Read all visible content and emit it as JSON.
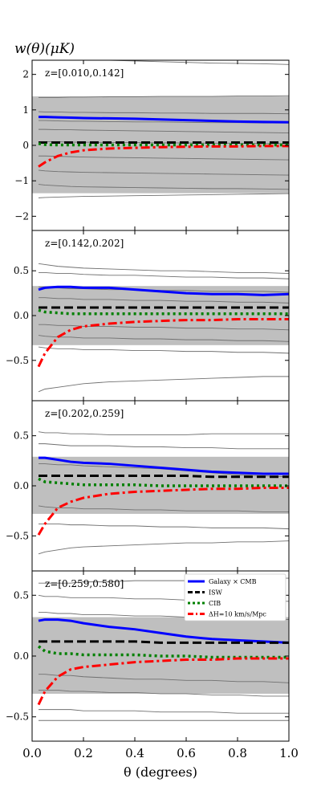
{
  "figure": {
    "ylabel": "w(θ)(μK)",
    "xlabel": "θ (degrees)",
    "x_ticks": [
      "0.0",
      "0.2",
      "0.4",
      "0.6",
      "0.8",
      "1.0"
    ]
  },
  "legend": {
    "placement": "upper-right of bottom panel",
    "entries": [
      {
        "label": "Galaxy × CMB",
        "color": "#0000ff",
        "style": "solid"
      },
      {
        "label": "ISW",
        "color": "#000000",
        "style": "dashed"
      },
      {
        "label": "CIB",
        "color": "#008000",
        "style": "dotted"
      },
      {
        "label": "ΔH=10 km/s/Mpc",
        "color": "#ff0000",
        "style": "dashdot"
      }
    ]
  },
  "colors": {
    "galaxy_cmb": "#0000ff",
    "isw": "#000000",
    "cib": "#008000",
    "delta_h": "#ff0000",
    "band": "#bfbfbf",
    "sims": "#707070"
  },
  "chart_data": [
    {
      "type": "line",
      "panel_label": "z=[0.010,0.142]",
      "xlim": [
        0.0,
        1.0
      ],
      "ylim": [
        -2.4,
        2.4
      ],
      "yticks": [
        -2,
        -1,
        0,
        1,
        2
      ],
      "ytick_labels": [
        "−2",
        "−1",
        "0",
        "1",
        "2"
      ],
      "band": [
        -1.35,
        1.38
      ],
      "x": [
        0.025,
        0.05,
        0.1,
        0.15,
        0.2,
        0.3,
        0.4,
        0.5,
        0.6,
        0.7,
        0.8,
        0.9,
        1.0
      ],
      "series": [
        {
          "key": "galaxy_cmb",
          "values": [
            0.8,
            0.8,
            0.79,
            0.78,
            0.77,
            0.76,
            0.75,
            0.73,
            0.71,
            0.69,
            0.67,
            0.66,
            0.65
          ]
        },
        {
          "key": "isw",
          "values": [
            0.08,
            0.08,
            0.08,
            0.08,
            0.08,
            0.08,
            0.08,
            0.08,
            0.08,
            0.08,
            0.08,
            0.08,
            0.08
          ]
        },
        {
          "key": "cib",
          "values": [
            0.05,
            0.02,
            0.01,
            0.01,
            0.01,
            0.01,
            0.01,
            0.01,
            0.01,
            0.01,
            0.01,
            0.01,
            0.01
          ]
        },
        {
          "key": "delta_h",
          "values": [
            -0.6,
            -0.48,
            -0.3,
            -0.2,
            -0.14,
            -0.09,
            -0.07,
            -0.05,
            -0.04,
            -0.03,
            -0.03,
            -0.02,
            -0.02
          ]
        }
      ],
      "sims": [
        [
          2.55,
          2.5,
          2.46,
          2.44,
          2.42,
          2.4,
          2.38,
          2.36,
          2.34,
          2.32,
          2.31,
          2.3,
          2.28
        ],
        [
          1.35,
          1.35,
          1.35,
          1.36,
          1.36,
          1.37,
          1.37,
          1.38,
          1.38,
          1.38,
          1.39,
          1.39,
          1.4
        ],
        [
          0.95,
          0.94,
          0.94,
          0.93,
          0.93,
          0.92,
          0.92,
          0.91,
          0.91,
          0.9,
          0.9,
          0.9,
          0.89
        ],
        [
          0.7,
          0.7,
          0.69,
          0.68,
          0.68,
          0.67,
          0.66,
          0.66,
          0.65,
          0.64,
          0.64,
          0.63,
          0.63
        ],
        [
          0.45,
          0.45,
          0.44,
          0.44,
          0.43,
          0.42,
          0.41,
          0.4,
          0.39,
          0.38,
          0.37,
          0.36,
          0.35
        ],
        [
          0.1,
          0.1,
          0.1,
          0.09,
          0.09,
          0.08,
          0.08,
          0.07,
          0.07,
          0.06,
          0.06,
          0.05,
          0.05
        ],
        [
          -0.3,
          -0.3,
          -0.31,
          -0.32,
          -0.33,
          -0.34,
          -0.35,
          -0.36,
          -0.37,
          -0.38,
          -0.39,
          -0.4,
          -0.41
        ],
        [
          -0.7,
          -0.72,
          -0.74,
          -0.75,
          -0.76,
          -0.77,
          -0.78,
          -0.79,
          -0.8,
          -0.81,
          -0.82,
          -0.83,
          -0.84
        ],
        [
          -1.1,
          -1.12,
          -1.14,
          -1.16,
          -1.17,
          -1.18,
          -1.19,
          -1.2,
          -1.21,
          -1.22,
          -1.22,
          -1.23,
          -1.24
        ],
        [
          -1.48,
          -1.47,
          -1.46,
          -1.45,
          -1.44,
          -1.43,
          -1.42,
          -1.41,
          -1.4,
          -1.39,
          -1.38,
          -1.37,
          -1.36
        ]
      ]
    },
    {
      "type": "line",
      "panel_label": "z=[0.142,0.202]",
      "xlim": [
        0.0,
        1.0
      ],
      "ylim": [
        -0.95,
        0.95
      ],
      "yticks": [
        -0.5,
        0.0,
        0.5
      ],
      "ytick_labels": [
        "−0.5",
        "0.0",
        "0.5"
      ],
      "band": [
        -0.33,
        0.33
      ],
      "x": [
        0.025,
        0.05,
        0.1,
        0.15,
        0.2,
        0.3,
        0.4,
        0.5,
        0.6,
        0.7,
        0.8,
        0.9,
        1.0
      ],
      "series": [
        {
          "key": "galaxy_cmb",
          "values": [
            0.29,
            0.31,
            0.32,
            0.32,
            0.31,
            0.31,
            0.29,
            0.27,
            0.25,
            0.24,
            0.24,
            0.23,
            0.24
          ]
        },
        {
          "key": "isw",
          "values": [
            0.09,
            0.09,
            0.09,
            0.09,
            0.09,
            0.09,
            0.09,
            0.09,
            0.09,
            0.09,
            0.09,
            0.09,
            0.09
          ]
        },
        {
          "key": "cib",
          "values": [
            0.06,
            0.04,
            0.03,
            0.02,
            0.02,
            0.02,
            0.02,
            0.02,
            0.02,
            0.02,
            0.02,
            0.02,
            0.02
          ]
        },
        {
          "key": "delta_h",
          "values": [
            -0.57,
            -0.42,
            -0.24,
            -0.16,
            -0.12,
            -0.09,
            -0.07,
            -0.06,
            -0.05,
            -0.05,
            -0.04,
            -0.04,
            -0.04
          ]
        }
      ],
      "sims": [
        [
          0.58,
          0.57,
          0.55,
          0.54,
          0.53,
          0.52,
          0.51,
          0.5,
          0.5,
          0.49,
          0.48,
          0.48,
          0.47
        ],
        [
          0.48,
          0.48,
          0.47,
          0.47,
          0.46,
          0.45,
          0.45,
          0.44,
          0.43,
          0.43,
          0.42,
          0.42,
          0.41
        ],
        [
          0.32,
          0.32,
          0.31,
          0.3,
          0.3,
          0.29,
          0.29,
          0.28,
          0.28,
          0.27,
          0.27,
          0.27,
          0.26
        ],
        [
          0.2,
          0.2,
          0.19,
          0.19,
          0.18,
          0.18,
          0.17,
          0.17,
          0.16,
          0.16,
          0.15,
          0.15,
          0.14
        ],
        [
          -0.1,
          -0.1,
          -0.11,
          -0.11,
          -0.12,
          -0.12,
          -0.13,
          -0.13,
          -0.14,
          -0.14,
          -0.15,
          -0.15,
          -0.16
        ],
        [
          -0.22,
          -0.23,
          -0.24,
          -0.24,
          -0.25,
          -0.25,
          -0.26,
          -0.26,
          -0.27,
          -0.27,
          -0.28,
          -0.28,
          -0.29
        ],
        [
          -0.35,
          -0.36,
          -0.37,
          -0.37,
          -0.38,
          -0.38,
          -0.39,
          -0.39,
          -0.4,
          -0.4,
          -0.41,
          -0.41,
          -0.42
        ],
        [
          -0.85,
          -0.82,
          -0.8,
          -0.78,
          -0.76,
          -0.74,
          -0.73,
          -0.72,
          -0.71,
          -0.7,
          -0.69,
          -0.68,
          -0.68
        ]
      ]
    },
    {
      "type": "line",
      "panel_label": "z=[0.202,0.259]",
      "xlim": [
        0.0,
        1.0
      ],
      "ylim": [
        -0.85,
        0.85
      ],
      "yticks": [
        -0.5,
        0.0,
        0.5
      ],
      "ytick_labels": [
        "−0.5",
        "0.0",
        "0.5"
      ],
      "band": [
        -0.28,
        0.29
      ],
      "x": [
        0.025,
        0.05,
        0.1,
        0.15,
        0.2,
        0.3,
        0.4,
        0.5,
        0.6,
        0.7,
        0.8,
        0.9,
        1.0
      ],
      "series": [
        {
          "key": "galaxy_cmb",
          "values": [
            0.28,
            0.28,
            0.26,
            0.24,
            0.23,
            0.22,
            0.2,
            0.18,
            0.16,
            0.14,
            0.13,
            0.12,
            0.12
          ]
        },
        {
          "key": "isw",
          "values": [
            0.1,
            0.1,
            0.1,
            0.1,
            0.1,
            0.1,
            0.1,
            0.1,
            0.1,
            0.09,
            0.09,
            0.09,
            0.09
          ]
        },
        {
          "key": "cib",
          "values": [
            0.07,
            0.04,
            0.03,
            0.02,
            0.01,
            0.01,
            0.01,
            0.0,
            0.0,
            0.0,
            0.0,
            0.0,
            0.0
          ]
        },
        {
          "key": "delta_h",
          "values": [
            -0.49,
            -0.38,
            -0.22,
            -0.16,
            -0.12,
            -0.08,
            -0.06,
            -0.05,
            -0.04,
            -0.03,
            -0.03,
            -0.02,
            -0.02
          ]
        }
      ],
      "sims": [
        [
          0.54,
          0.53,
          0.53,
          0.52,
          0.52,
          0.51,
          0.51,
          0.51,
          0.51,
          0.52,
          0.52,
          0.52,
          0.52
        ],
        [
          0.42,
          0.42,
          0.41,
          0.4,
          0.4,
          0.4,
          0.39,
          0.39,
          0.38,
          0.38,
          0.37,
          0.37,
          0.37
        ],
        [
          0.22,
          0.22,
          0.21,
          0.21,
          0.2,
          0.19,
          0.18,
          0.17,
          0.15,
          0.13,
          0.11,
          0.1,
          0.09
        ],
        [
          -0.2,
          -0.21,
          -0.22,
          -0.22,
          -0.23,
          -0.23,
          -0.24,
          -0.24,
          -0.25,
          -0.25,
          -0.25,
          -0.26,
          -0.26
        ],
        [
          -0.38,
          -0.38,
          -0.38,
          -0.39,
          -0.39,
          -0.4,
          -0.4,
          -0.41,
          -0.41,
          -0.42,
          -0.42,
          -0.42,
          -0.43
        ],
        [
          -0.68,
          -0.66,
          -0.64,
          -0.62,
          -0.61,
          -0.6,
          -0.59,
          -0.58,
          -0.57,
          -0.57,
          -0.56,
          -0.56,
          -0.55
        ]
      ]
    },
    {
      "type": "line",
      "panel_label": "z=[0.259,0.580]",
      "xlim": [
        0.0,
        1.0
      ],
      "ylim": [
        -0.7,
        0.7
      ],
      "yticks": [
        -0.5,
        0.0,
        0.5
      ],
      "ytick_labels": [
        "−0.5",
        "0.0",
        "0.5"
      ],
      "band": [
        -0.31,
        0.32
      ],
      "x": [
        0.025,
        0.05,
        0.1,
        0.15,
        0.2,
        0.3,
        0.4,
        0.5,
        0.6,
        0.7,
        0.8,
        0.9,
        1.0
      ],
      "series": [
        {
          "key": "galaxy_cmb",
          "values": [
            0.29,
            0.3,
            0.3,
            0.29,
            0.27,
            0.24,
            0.22,
            0.19,
            0.16,
            0.14,
            0.13,
            0.12,
            0.11
          ]
        },
        {
          "key": "isw",
          "values": [
            0.12,
            0.12,
            0.12,
            0.12,
            0.12,
            0.12,
            0.12,
            0.11,
            0.11,
            0.11,
            0.11,
            0.11,
            0.11
          ]
        },
        {
          "key": "cib",
          "values": [
            0.08,
            0.04,
            0.02,
            0.02,
            0.01,
            0.01,
            0.01,
            0.0,
            0.0,
            -0.01,
            -0.01,
            -0.01,
            -0.01
          ]
        },
        {
          "key": "delta_h",
          "values": [
            -0.4,
            -0.29,
            -0.17,
            -0.11,
            -0.09,
            -0.07,
            -0.05,
            -0.04,
            -0.03,
            -0.03,
            -0.02,
            -0.02,
            -0.02
          ]
        }
      ],
      "sims": [
        [
          0.6,
          0.6,
          0.6,
          0.6,
          0.61,
          0.61,
          0.62,
          0.62,
          0.62,
          0.63,
          0.63,
          0.64,
          0.64
        ],
        [
          0.5,
          0.49,
          0.49,
          0.48,
          0.48,
          0.48,
          0.47,
          0.47,
          0.46,
          0.46,
          0.46,
          0.45,
          0.45
        ],
        [
          0.36,
          0.36,
          0.35,
          0.35,
          0.34,
          0.34,
          0.33,
          0.33,
          0.32,
          0.32,
          0.31,
          0.31,
          0.3
        ],
        [
          -0.15,
          -0.15,
          -0.16,
          -0.16,
          -0.17,
          -0.18,
          -0.19,
          -0.19,
          -0.2,
          -0.2,
          -0.21,
          -0.21,
          -0.22
        ],
        [
          -0.28,
          -0.28,
          -0.28,
          -0.29,
          -0.29,
          -0.3,
          -0.3,
          -0.31,
          -0.31,
          -0.32,
          -0.32,
          -0.33,
          -0.33
        ],
        [
          -0.44,
          -0.44,
          -0.44,
          -0.44,
          -0.45,
          -0.45,
          -0.45,
          -0.46,
          -0.46,
          -0.46,
          -0.47,
          -0.47,
          -0.47
        ],
        [
          -0.53,
          -0.53,
          -0.53,
          -0.53,
          -0.53,
          -0.53,
          -0.53,
          -0.53,
          -0.53,
          -0.53,
          -0.53,
          -0.53,
          -0.53
        ]
      ]
    }
  ]
}
